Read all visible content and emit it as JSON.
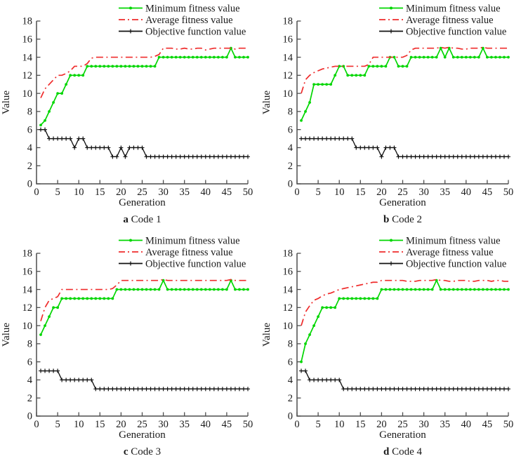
{
  "page": {
    "background": "#ffffff"
  },
  "colors": {
    "min": "#00d600",
    "avg": "#ef2c2c",
    "obj": "#111111",
    "axis": "#4d4d4d",
    "text": "#1a1a1a"
  },
  "axes": {
    "xlabel": "Generation",
    "ylabel": "Value",
    "xticks": [
      0,
      5,
      10,
      15,
      20,
      25,
      30,
      35,
      40,
      45,
      50
    ],
    "yticks": [
      0,
      2,
      4,
      6,
      8,
      10,
      12,
      14,
      16,
      18
    ],
    "xlim": [
      0,
      50
    ],
    "ylim": [
      0,
      18
    ],
    "grid": false
  },
  "legend": {
    "position": "top-right",
    "entries": [
      {
        "label": "Minimum fitness value",
        "color_key": "min",
        "style": "line-dot"
      },
      {
        "label": "Average fitness value",
        "color_key": "avg",
        "style": "dashdot"
      },
      {
        "label": "Objective function value",
        "color_key": "obj",
        "style": "line-plus"
      }
    ]
  },
  "chart_data": [
    {
      "type": "line",
      "panel_letter": "a",
      "caption": "Code 1",
      "x_start": 1,
      "series": [
        {
          "name": "Minimum fitness value",
          "color_key": "min",
          "style": "line-dot",
          "values": [
            6.5,
            7,
            8,
            9,
            10,
            10,
            11,
            12,
            12,
            12,
            12,
            13,
            13,
            13,
            13,
            13,
            13,
            13,
            13,
            13,
            13,
            13,
            13,
            13,
            13,
            13,
            13,
            13,
            14,
            14,
            14,
            14,
            14,
            14,
            14,
            14,
            14,
            14,
            14,
            14,
            14,
            14,
            14,
            14,
            14,
            15,
            14,
            14,
            14,
            14
          ]
        },
        {
          "name": "Average fitness value",
          "color_key": "avg",
          "style": "dashdot",
          "values": [
            9.5,
            10.5,
            11,
            11.5,
            12,
            12,
            12.2,
            12.5,
            13,
            13,
            13,
            13.3,
            13.9,
            14,
            14,
            14,
            14,
            14,
            14,
            14,
            14,
            14,
            14,
            14,
            14,
            14,
            14,
            14.1,
            14.3,
            15,
            15,
            15,
            14.9,
            14.9,
            15,
            14.9,
            14.9,
            15,
            15,
            14.8,
            14.9,
            15,
            15,
            15,
            15,
            15,
            14.9,
            15,
            15,
            15
          ]
        },
        {
          "name": "Objective function value",
          "color_key": "obj",
          "style": "line-plus",
          "values": [
            6,
            6,
            5,
            5,
            5,
            5,
            5,
            5,
            4,
            5,
            5,
            4,
            4,
            4,
            4,
            4,
            4,
            3,
            3,
            4,
            3,
            4,
            4,
            4,
            4,
            3,
            3,
            3,
            3,
            3,
            3,
            3,
            3,
            3,
            3,
            3,
            3,
            3,
            3,
            3,
            3,
            3,
            3,
            3,
            3,
            3,
            3,
            3,
            3,
            3
          ]
        }
      ]
    },
    {
      "type": "line",
      "panel_letter": "b",
      "caption": "Code 2",
      "x_start": 1,
      "series": [
        {
          "name": "Minimum fitness value",
          "color_key": "min",
          "style": "line-dot",
          "values": [
            7,
            8,
            9,
            11,
            11,
            11,
            11,
            11,
            12,
            13,
            13,
            12,
            12,
            12,
            12,
            12,
            13,
            13,
            13,
            13,
            13,
            14,
            14,
            13,
            13,
            13,
            14,
            14,
            14,
            14,
            14,
            14,
            14,
            15,
            14,
            15,
            14,
            14,
            14,
            14,
            14,
            14,
            14,
            15,
            14,
            14,
            14,
            14,
            14,
            14
          ]
        },
        {
          "name": "Average fitness value",
          "color_key": "avg",
          "style": "dashdot",
          "values": [
            10,
            11.5,
            12,
            12.3,
            12.5,
            12.7,
            12.8,
            12.9,
            13,
            13,
            13,
            13,
            13,
            13,
            13,
            13,
            13.2,
            14,
            14,
            14,
            14,
            14,
            14,
            14,
            14,
            14.2,
            14.8,
            15,
            15,
            15,
            15,
            15,
            15,
            15.1,
            15,
            15.1,
            15,
            15,
            14.9,
            14.9,
            15,
            15,
            15,
            15.1,
            15,
            15,
            15,
            15,
            15,
            15
          ]
        },
        {
          "name": "Objective function value",
          "color_key": "obj",
          "style": "line-plus",
          "values": [
            5,
            5,
            5,
            5,
            5,
            5,
            5,
            5,
            5,
            5,
            5,
            5,
            5,
            4,
            4,
            4,
            4,
            4,
            4,
            3,
            4,
            4,
            4,
            3,
            3,
            3,
            3,
            3,
            3,
            3,
            3,
            3,
            3,
            3,
            3,
            3,
            3,
            3,
            3,
            3,
            3,
            3,
            3,
            3,
            3,
            3,
            3,
            3,
            3,
            3
          ]
        }
      ]
    },
    {
      "type": "line",
      "panel_letter": "c",
      "caption": "Code 3",
      "x_start": 1,
      "series": [
        {
          "name": "Minimum fitness value",
          "color_key": "min",
          "style": "line-dot",
          "values": [
            9,
            10,
            11,
            12,
            12,
            13,
            13,
            13,
            13,
            13,
            13,
            13,
            13,
            13,
            13,
            13,
            13,
            13,
            14,
            14,
            14,
            14,
            14,
            14,
            14,
            14,
            14,
            14,
            14,
            15,
            14,
            14,
            14,
            14,
            14,
            14,
            14,
            14,
            14,
            14,
            14,
            14,
            14,
            14,
            14,
            15,
            14,
            14,
            14,
            14
          ]
        },
        {
          "name": "Average fitness value",
          "color_key": "avg",
          "style": "dashdot",
          "values": [
            10.5,
            12,
            12.8,
            13,
            13.2,
            14,
            14,
            14,
            14,
            14,
            14,
            14,
            14,
            14,
            14,
            14,
            14,
            14.1,
            14.5,
            15,
            15,
            15,
            15,
            15,
            15,
            15,
            15,
            15,
            15,
            15.1,
            15,
            15,
            15,
            15,
            15,
            15,
            15,
            15,
            15,
            15,
            15,
            15,
            15,
            15,
            15,
            15.1,
            15,
            15,
            15,
            15
          ]
        },
        {
          "name": "Objective function value",
          "color_key": "obj",
          "style": "line-plus",
          "values": [
            5,
            5,
            5,
            5,
            5,
            4,
            4,
            4,
            4,
            4,
            4,
            4,
            4,
            3,
            3,
            3,
            3,
            3,
            3,
            3,
            3,
            3,
            3,
            3,
            3,
            3,
            3,
            3,
            3,
            3,
            3,
            3,
            3,
            3,
            3,
            3,
            3,
            3,
            3,
            3,
            3,
            3,
            3,
            3,
            3,
            3,
            3,
            3,
            3,
            3
          ]
        }
      ]
    },
    {
      "type": "line",
      "panel_letter": "d",
      "caption": "Code 4",
      "x_start": 1,
      "series": [
        {
          "name": "Minimum fitness value",
          "color_key": "min",
          "style": "line-dot",
          "values": [
            6,
            8,
            9,
            10,
            11,
            12,
            12,
            12,
            12,
            13,
            13,
            13,
            13,
            13,
            13,
            13,
            13,
            13,
            13,
            14,
            14,
            14,
            14,
            14,
            14,
            14,
            14,
            14,
            14,
            14,
            14,
            14,
            15,
            14,
            14,
            14,
            14,
            14,
            14,
            14,
            14,
            14,
            14,
            14,
            14,
            14,
            14,
            14,
            14,
            14
          ]
        },
        {
          "name": "Average fitness value",
          "color_key": "avg",
          "style": "dashdot",
          "values": [
            10,
            11.5,
            12.2,
            12.8,
            13,
            13.3,
            13.5,
            13.6,
            13.8,
            14,
            14.1,
            14.2,
            14.3,
            14.4,
            14.5,
            14.6,
            14.7,
            14.8,
            14.8,
            15,
            15,
            15,
            15,
            15,
            15,
            14.9,
            14.9,
            14.9,
            15,
            15,
            15,
            15,
            15.1,
            15,
            15,
            14.9,
            14.9,
            15,
            15,
            15,
            14.9,
            14.9,
            15,
            15,
            15,
            14.9,
            15,
            15,
            14.9,
            14.9
          ]
        },
        {
          "name": "Objective function value",
          "color_key": "obj",
          "style": "line-plus",
          "values": [
            5,
            5,
            4,
            4,
            4,
            4,
            4,
            4,
            4,
            4,
            3,
            3,
            3,
            3,
            3,
            3,
            3,
            3,
            3,
            3,
            3,
            3,
            3,
            3,
            3,
            3,
            3,
            3,
            3,
            3,
            3,
            3,
            3,
            3,
            3,
            3,
            3,
            3,
            3,
            3,
            3,
            3,
            3,
            3,
            3,
            3,
            3,
            3,
            3,
            3
          ]
        }
      ]
    }
  ]
}
